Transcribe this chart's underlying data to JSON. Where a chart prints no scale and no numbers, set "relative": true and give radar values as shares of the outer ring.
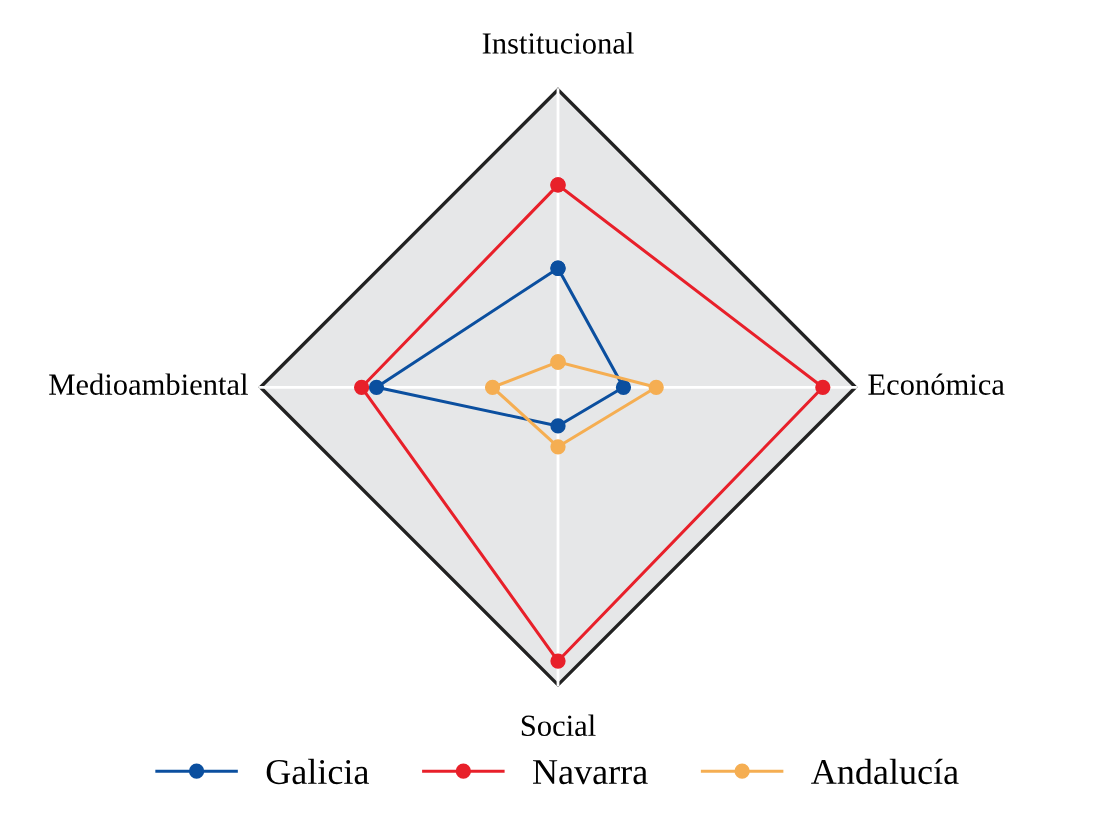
{
  "chart_data": {
    "type": "radar",
    "relative": true,
    "categories": [
      "Institucional",
      "Económica",
      "Social",
      "Medioambiental"
    ],
    "series": [
      {
        "name": "Galicia",
        "color": "#0b4f9f",
        "values": [
          0.4,
          0.22,
          0.13,
          0.61
        ]
      },
      {
        "name": "Navarra",
        "color": "#e8202a",
        "values": [
          0.68,
          0.89,
          0.92,
          0.66
        ]
      },
      {
        "name": "Andalucía",
        "color": "#f5ae52",
        "values": [
          0.085,
          0.33,
          0.2,
          0.22
        ]
      }
    ],
    "grid": true,
    "legend": "bottom",
    "marker": "circle",
    "line_style": "solid"
  }
}
